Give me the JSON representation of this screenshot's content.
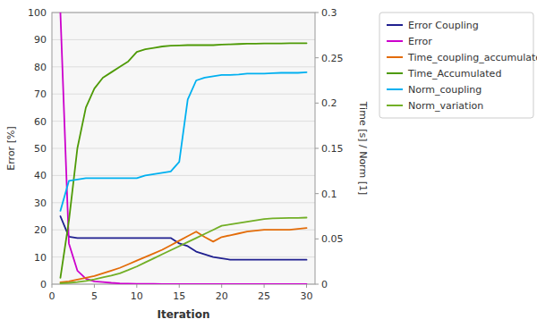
{
  "chart_data": {
    "type": "line",
    "xlabel": "Iteration",
    "ylabel": "Error [%]",
    "y2label": "Time [s] / Norm [1]",
    "x": [
      1,
      2,
      3,
      4,
      5,
      6,
      7,
      8,
      9,
      10,
      11,
      12,
      13,
      14,
      15,
      16,
      17,
      18,
      19,
      20,
      21,
      22,
      23,
      24,
      25,
      26,
      27,
      28,
      29,
      30
    ],
    "xlim": [
      0,
      31
    ],
    "xticks": [
      0,
      5,
      10,
      15,
      20,
      25,
      30
    ],
    "ylim": [
      0,
      100
    ],
    "yticks": [
      0,
      10,
      20,
      30,
      40,
      50,
      60,
      70,
      80,
      90,
      100
    ],
    "y2lim": [
      0,
      0.3
    ],
    "y2ticks": [
      0,
      0.05,
      0.1,
      0.15,
      0.2,
      0.25,
      0.3
    ],
    "grid": true,
    "legend": "right",
    "series": [
      {
        "name": "Error Coupling",
        "color": "#1f1f8f",
        "values": [
          25,
          17.5,
          17,
          17,
          17,
          17,
          17,
          17,
          17,
          17,
          17,
          17,
          17,
          17,
          15,
          14,
          12,
          11,
          10,
          9.5,
          9,
          9,
          9,
          9,
          9,
          9,
          9,
          9,
          9,
          9
        ]
      },
      {
        "name": "Error",
        "color": "#cc00cc",
        "values": [
          100,
          15,
          5,
          2,
          1,
          0.8,
          0.5,
          0.3,
          0.2,
          0.15,
          0.1,
          0.08,
          0.06,
          0.05,
          0.04,
          0.03,
          0.02,
          0.02,
          0.01,
          0.01,
          0.01,
          0.01,
          0.01,
          0.01,
          0.01,
          0.01,
          0.01,
          0.01,
          0.01,
          0.01
        ]
      },
      {
        "name": "Time_coupling_accumulated",
        "color": "#e36c09",
        "axis": "y2",
        "values": [
          0.002,
          0.003,
          0.005,
          0.007,
          0.009,
          0.012,
          0.015,
          0.018,
          0.022,
          0.026,
          0.03,
          0.034,
          0.038,
          0.043,
          0.048,
          0.053,
          0.058,
          0.052,
          0.047,
          0.052,
          0.054,
          0.056,
          0.058,
          0.059,
          0.06,
          0.06,
          0.06,
          0.06,
          0.061,
          0.062
        ]
      },
      {
        "name": "Time_Accumulated",
        "color": "#4e9a06",
        "axis": "y2",
        "values": [
          0.007,
          0.07,
          0.15,
          0.195,
          0.216,
          0.228,
          0.234,
          0.24,
          0.246,
          0.2565,
          0.2595,
          0.261,
          0.2625,
          0.2634,
          0.2637,
          0.264,
          0.264,
          0.264,
          0.264,
          0.2646,
          0.2649,
          0.2652,
          0.2655,
          0.2655,
          0.2658,
          0.2658,
          0.2658,
          0.2661,
          0.2661,
          0.2661
        ]
      },
      {
        "name": "Norm_coupling",
        "color": "#00b0f0",
        "axis": "y2",
        "values": [
          0.081,
          0.114,
          0.1155,
          0.117,
          0.117,
          0.117,
          0.117,
          0.117,
          0.117,
          0.117,
          0.12,
          0.1215,
          0.123,
          0.1245,
          0.135,
          0.204,
          0.225,
          0.228,
          0.2295,
          0.231,
          0.231,
          0.2316,
          0.2325,
          0.2325,
          0.2325,
          0.2331,
          0.2334,
          0.2334,
          0.2334,
          0.234
        ]
      },
      {
        "name": "Norm_variation",
        "color": "#72af26",
        "axis": "y2",
        "values": [
          0.001,
          0.0015,
          0.0024,
          0.0036,
          0.0054,
          0.0075,
          0.0096,
          0.012,
          0.0156,
          0.0195,
          0.024,
          0.0285,
          0.033,
          0.0375,
          0.042,
          0.0465,
          0.051,
          0.0555,
          0.06,
          0.0645,
          0.066,
          0.0675,
          0.069,
          0.0705,
          0.072,
          0.0726,
          0.0729,
          0.0732,
          0.0732,
          0.0735
        ]
      }
    ]
  }
}
